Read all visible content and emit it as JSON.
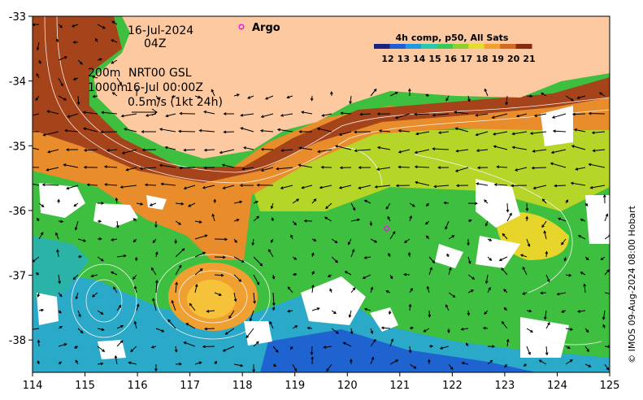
{
  "map": {
    "date": "16-Jul-2024",
    "hour": "04Z",
    "contour_label_200": "200m",
    "contour_label_1000": "1000m",
    "currents_label": "NRT00 GSL",
    "currents_time": "16-Jul 00:00Z",
    "vector_scale_label": "0.5m/s (1kt 24h)",
    "argo_label": "Argo",
    "credit": "© IMOS 09-Aug-2024 08:00 Hobart",
    "colorbar": {
      "title": "4h comp, p50, All Sats",
      "ticks": [
        "12",
        "13",
        "14",
        "15",
        "16",
        "17",
        "18",
        "19",
        "20",
        "21"
      ],
      "colors": [
        "#1a237e",
        "#1f5fd6",
        "#1e9be0",
        "#2bc7b0",
        "#3cc75a",
        "#8fd12a",
        "#e2de2a",
        "#f0a030",
        "#d26a22",
        "#8a2a10"
      ]
    },
    "x_ticks": [
      "114",
      "115",
      "116",
      "117",
      "118",
      "119",
      "120",
      "121",
      "122",
      "123",
      "124",
      "125"
    ],
    "y_ticks": [
      "-33",
      "-34",
      "-35",
      "-36",
      "-37",
      "-38"
    ],
    "x_range": [
      114,
      125
    ],
    "y_range": [
      -38.5,
      -33
    ],
    "land_color": "#fdc9a0",
    "cloud_color": "#ffffff",
    "argo_floats": [
      {
        "lon": 117.98,
        "lat": -33.18
      },
      {
        "lon": 120.75,
        "lat": -36.28
      }
    ]
  }
}
